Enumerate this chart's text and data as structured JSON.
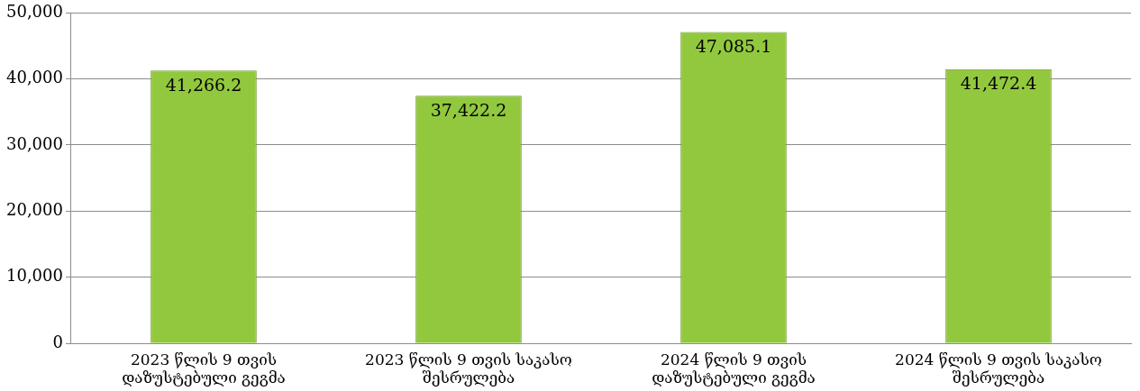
{
  "chart_data": {
    "type": "bar",
    "categories": [
      "2023 წლის 9 თვის დაზუსტებული გეგმა",
      "2023 წლის 9 თვის საკასო შესრულება",
      "2024 წლის 9 თვის დაზუსტებული გეგმა",
      "2024 წლის 9 თვის საკასო შესრულება"
    ],
    "values": [
      41266.2,
      37422.2,
      47085.1,
      41472.4
    ],
    "color": "#92c83e",
    "value_labels": [
      "41,266.2",
      "37,422.2",
      "47,085.1",
      "41,472.4"
    ],
    "ylim": [
      0,
      50000
    ],
    "yticks": [
      0,
      {
        "value": 10000,
        "label": "10,000"
      },
      {
        "value": 20000,
        "label": "20,000"
      },
      {
        "value": 30000,
        "label": "30,000"
      },
      {
        "value": 40000,
        "label": "40,000"
      },
      {
        "value": 50000,
        "label": "50,000"
      }
    ],
    "grid": "y",
    "legend": false
  }
}
